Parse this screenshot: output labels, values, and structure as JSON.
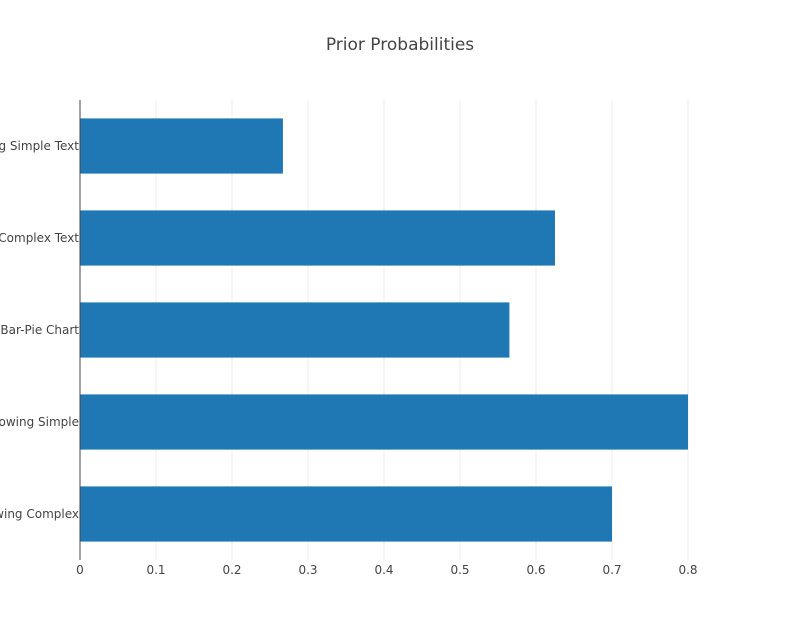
{
  "chart_data": {
    "type": "bar",
    "orientation": "horizontal",
    "title": "Prior Probabilities",
    "xlabel": "",
    "ylabel": "",
    "categories": [
      "…ng Simple Text",
      "… Complex Text",
      "…g Bar-Pie Chart",
      "…howing Simple",
      "…wing Complex"
    ],
    "values": [
      0.267,
      0.625,
      0.565,
      0.8,
      0.7
    ],
    "xlim": [
      0,
      0.9
    ],
    "xticks": [
      0,
      0.1,
      0.2,
      0.3,
      0.4,
      0.5,
      0.6,
      0.7,
      0.8
    ],
    "grid": true,
    "bar_color": "#1f77b4",
    "legend": "none"
  }
}
